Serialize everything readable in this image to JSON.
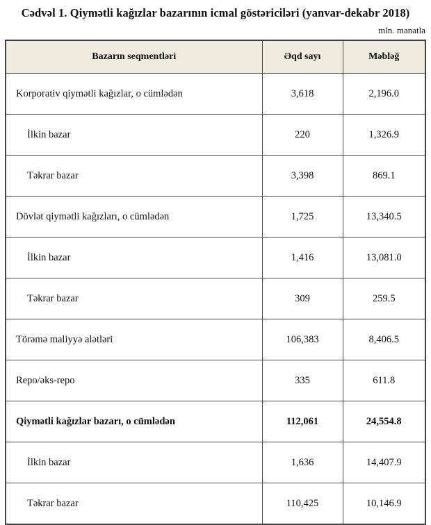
{
  "title": "Cədvəl 1. Qiymətli kağızlar bazarının icmal göstəriciləri (yanvar-dekabr 2018)",
  "unit_note": "mln. manatla",
  "colors": {
    "header_bg": "#efecdf",
    "border": "#3f3f3f",
    "text": "#111111"
  },
  "table": {
    "columns": [
      "Bazarın seqmentləri",
      "Əqd sayı",
      "Məbləğ"
    ],
    "rows": [
      {
        "segment": "Korporativ qiymətli kağızlar, o cümlədən",
        "deals": "3,618",
        "amount": "2,196.0",
        "indent": false,
        "bold": false
      },
      {
        "segment": "İlkin bazar",
        "deals": "220",
        "amount": "1,326.9",
        "indent": true,
        "bold": false
      },
      {
        "segment": "Təkrar bazar",
        "deals": "3,398",
        "amount": "869.1",
        "indent": true,
        "bold": false
      },
      {
        "segment": "Dövlət qiymətli kağızları, o cümlədən",
        "deals": "1,725",
        "amount": "13,340.5",
        "indent": false,
        "bold": false
      },
      {
        "segment": "İlkin bazar",
        "deals": "1,416",
        "amount": "13,081.0",
        "indent": true,
        "bold": false
      },
      {
        "segment": "Təkrar bazar",
        "deals": "309",
        "amount": "259.5",
        "indent": true,
        "bold": false
      },
      {
        "segment": "Törəmə maliyyə alətləri",
        "deals": "106,383",
        "amount": "8,406.5",
        "indent": false,
        "bold": false
      },
      {
        "segment": "Repo/əks-repo",
        "deals": "335",
        "amount": "611.8",
        "indent": false,
        "bold": false
      },
      {
        "segment": "Qiymətli kağızlar bazarı, o cümlədən",
        "deals": "112,061",
        "amount": "24,554.8",
        "indent": false,
        "bold": true
      },
      {
        "segment": "İlkin bazar",
        "deals": "1,636",
        "amount": "14,407.9",
        "indent": true,
        "bold": false
      },
      {
        "segment": "Təkrar bazar",
        "deals": "110,425",
        "amount": "10,146.9",
        "indent": true,
        "bold": false
      }
    ]
  }
}
